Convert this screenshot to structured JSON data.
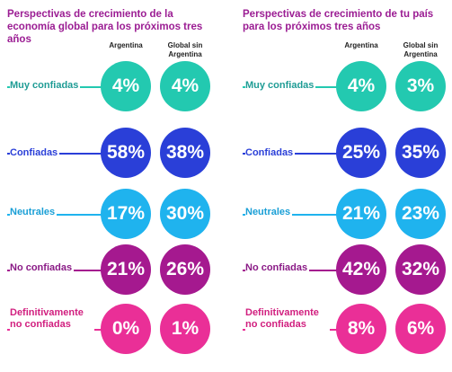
{
  "colors": {
    "muy": "#23c9b0",
    "conf": "#2a3fd8",
    "neut": "#1fb3ee",
    "noconf": "#a5198f",
    "defno": "#ea2f97",
    "title": "#9b1d93",
    "label_muy": "#1f9c95",
    "label_conf": "#2a3fd8",
    "label_neut": "#1a9fd6",
    "label_noconf": "#8a1a86",
    "label_defno": "#d11f7f"
  },
  "chart_data": [
    {
      "type": "table",
      "title": "Perspectivas de crecimiento de la economía global para los próximos tres años",
      "columns": [
        "Argentina",
        "Global sin Argentina"
      ],
      "rows": [
        {
          "label": "Muy confiadas",
          "values": [
            "4%",
            "4%"
          ]
        },
        {
          "label": "Confiadas",
          "values": [
            "58%",
            "38%"
          ]
        },
        {
          "label": "Neutrales",
          "values": [
            "17%",
            "30%"
          ]
        },
        {
          "label": "No confiadas",
          "values": [
            "21%",
            "26%"
          ]
        },
        {
          "label": "Definitivamente no confiadas",
          "values": [
            "0%",
            "1%"
          ]
        }
      ]
    },
    {
      "type": "table",
      "title": "Perspectivas de crecimiento de tu país para los próximos tres años",
      "columns": [
        "Argentina",
        "Global sin Argentina"
      ],
      "rows": [
        {
          "label": "Muy confiadas",
          "values": [
            "4%",
            "3%"
          ]
        },
        {
          "label": "Confiadas",
          "values": [
            "25%",
            "35%"
          ]
        },
        {
          "label": "Neutrales",
          "values": [
            "21%",
            "23%"
          ]
        },
        {
          "label": "No confiadas",
          "values": [
            "42%",
            "32%"
          ]
        },
        {
          "label": "Definitivamente no confiadas",
          "values": [
            "8%",
            "6%"
          ]
        }
      ]
    }
  ]
}
